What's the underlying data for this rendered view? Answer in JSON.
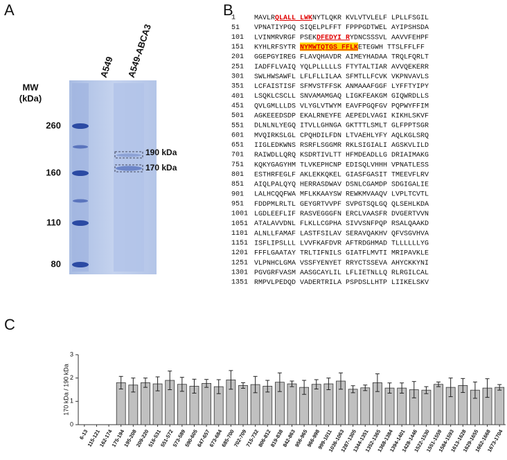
{
  "panel_a": {
    "label": "A",
    "mw_label": [
      "MW",
      "(kDa)"
    ],
    "markers": [
      "260",
      "160",
      "110",
      "80"
    ],
    "lanes": [
      "A549",
      "A549-ABCA3"
    ],
    "band_labels": [
      "190 kDa",
      "170 kDa"
    ]
  },
  "panel_b": {
    "label": "B",
    "lines": [
      {
        "number": "1",
        "segments": [
          {
            "text": "MAVLR"
          },
          {
            "text": "QLALL LWK",
            "style": "red"
          },
          {
            "text": "NYTLQKR KVLVTVLELF LPLLFSGIL"
          }
        ]
      },
      {
        "number": "51",
        "segments": [
          {
            "text": "VPNATIYPGQ SIQELPLFFT FPPPGDTWEL AYIPSHSDA"
          }
        ]
      },
      {
        "number": "101",
        "segments": [
          {
            "text": "LVINMRVRGF PSEK"
          },
          {
            "text": "DFEDYI R",
            "style": "red"
          },
          {
            "text": "YDNCSSSVL AAVVFEHPF"
          }
        ]
      },
      {
        "number": "151",
        "segments": [
          {
            "text": "KYHLRFSYTR "
          },
          {
            "text": "NYMWTQTGS FFLK",
            "style": "highlight"
          },
          {
            "text": "ETEGWH TTSLFFLFF"
          }
        ]
      },
      {
        "number": "201",
        "segments": [
          {
            "text": "GGEPGYIREG FLAVQHAVDR AIMEYHADAA TRQLFQRLT"
          }
        ]
      },
      {
        "number": "251",
        "segments": [
          {
            "text": "IADFFLVAIQ YQLPLLLLLS FTYTALTIAR AVVQEKERR"
          }
        ]
      },
      {
        "number": "301",
        "segments": [
          {
            "text": "SWLHWSAWFL LFLFLLILAA SFMTLLFCVK VKPNVAVLS"
          }
        ]
      },
      {
        "number": "351",
        "segments": [
          {
            "text": "LCFAISTISF SFMVSTFFSK ANMAAAFGGF LYFFTYIPY"
          }
        ]
      },
      {
        "number": "401",
        "segments": [
          {
            "text": "LSQKLCSCLL SNVAMAMGAQ LIGKFEAKGM GIQWRDLLS"
          }
        ]
      },
      {
        "number": "451",
        "segments": [
          {
            "text": "QVLGMLLLDS VLYGLVTWYM EAVFPGQFGV PQPWYFFIM"
          }
        ]
      },
      {
        "number": "501",
        "segments": [
          {
            "text": "AGKEEEDSDP EKALRNEYFE AEPEDLVAGI KIKHLSKVF"
          }
        ]
      },
      {
        "number": "551",
        "segments": [
          {
            "text": "DLNLNLYEGQ ITVLLGHNGA GKTTTLSMLT GLFPPTSGR"
          }
        ]
      },
      {
        "number": "601",
        "segments": [
          {
            "text": "MVQIRKSLGL CPQHDILFDN LTVAEHLYFY AQLKGLSRQ"
          }
        ]
      },
      {
        "number": "651",
        "segments": [
          {
            "text": "IIGLEDKWNS RSRFLSGGMR RKLSIGIALI AGSKVLILD"
          }
        ]
      },
      {
        "number": "701",
        "segments": [
          {
            "text": "RAIWDLLQRQ KSDRTIVLTT HFMDEADLLG DRIAIMAKG"
          }
        ]
      },
      {
        "number": "751",
        "segments": [
          {
            "text": "KQKYGAGYHM TLVKEPHCNP EDISQLVHHH VPNATLESS"
          }
        ]
      },
      {
        "number": "801",
        "segments": [
          {
            "text": "ESTHRFEGLF AKLEKKQKEL GIASFGASIT TMEEVFLRV"
          }
        ]
      },
      {
        "number": "851",
        "segments": [
          {
            "text": "AIQLPALQYQ HERRASDWAV DSNLCGAMDP SDGIGALIE"
          }
        ]
      },
      {
        "number": "901",
        "segments": [
          {
            "text": "LALHCQQFWA MFLKKAAYSW REWKMVAAQV LVPLTCVTL"
          }
        ]
      },
      {
        "number": "951",
        "segments": [
          {
            "text": "FDDPMLRLTL GEYGRTVVPF SVPGTSQLGQ QLSEHLKDA"
          }
        ]
      },
      {
        "number": "1001",
        "segments": [
          {
            "text": "LGDLEEFLIF RASVEGGGFN ERCLVAASFR DVGERTVVN"
          }
        ]
      },
      {
        "number": "1051",
        "segments": [
          {
            "text": "ATALAVVDNL FLKLLCGPHA SIVVSNFPQP RSALQAAKD"
          }
        ]
      },
      {
        "number": "1101",
        "segments": [
          {
            "text": "ALNLLFAMAF LASTFSILAV SERAVQAKHV QFVSGVHVA"
          }
        ]
      },
      {
        "number": "1151",
        "segments": [
          {
            "text": "ISFLIPSLLL LVVFKAFDVR AFTRDGHMAD TLLLLLLYG"
          }
        ]
      },
      {
        "number": "1201",
        "segments": [
          {
            "text": "FFFLGAATAY TRLTIFNILS GIATFLMVTI MRIPAVKLE"
          }
        ]
      },
      {
        "number": "1251",
        "segments": [
          {
            "text": "VLPNHCLGMA VSSFYENYET RRYCTSSEVA AHYCKKYNI"
          }
        ]
      },
      {
        "number": "1301",
        "segments": [
          {
            "text": "PGVGRFVASM AASGCAYLIL LFLIETNLLQ RLRGILCAL"
          }
        ]
      },
      {
        "number": "1351",
        "segments": [
          {
            "text": "RMPVLPEDQD VADERTRILA PSPDSLLHTP LIIKELSKV"
          }
        ]
      }
    ]
  },
  "chart_data": {
    "type": "bar",
    "panel_label": "C",
    "y_label": "170 kDa / 190 kDa",
    "color": "#c0c0c0",
    "categories": [
      "6-13",
      "115-121",
      "162-174",
      "175-194",
      "195-208",
      "209-220",
      "516-531",
      "551-572",
      "573-589",
      "590-605",
      "647-657",
      "673-684",
      "685-700",
      "702-709",
      "715-732",
      "806-812",
      "819-838",
      "842-863",
      "956-965",
      "966-998",
      "999-1011",
      "1036-1063",
      "1287-1305",
      "1344-1351",
      "1352-1365",
      "1368-1384",
      "1394-1401",
      "1428-1446",
      "1522-1530",
      "1551-1559",
      "1584-1593",
      "1613-1628",
      "1629-1655",
      "1662-1668",
      "1673-1704"
    ],
    "values": [
      null,
      null,
      null,
      1.8,
      1.7,
      1.8,
      1.75,
      1.9,
      1.73,
      1.65,
      1.77,
      1.63,
      1.92,
      1.68,
      1.72,
      1.65,
      1.82,
      1.75,
      1.6,
      1.73,
      1.75,
      1.87,
      1.52,
      1.58,
      1.8,
      1.57,
      1.57,
      1.5,
      1.48,
      1.73,
      1.6,
      1.68,
      1.48,
      1.57,
      1.6
    ],
    "errors": [
      null,
      null,
      null,
      0.27,
      0.3,
      0.2,
      0.3,
      0.4,
      0.3,
      0.3,
      0.17,
      0.3,
      0.4,
      0.12,
      0.35,
      0.25,
      0.4,
      0.12,
      0.3,
      0.2,
      0.25,
      0.35,
      0.15,
      0.12,
      0.38,
      0.22,
      0.22,
      0.35,
      0.15,
      0.1,
      0.4,
      0.3,
      0.35,
      0.4,
      0.12
    ],
    "ylim": [
      0,
      3
    ],
    "yticks": [
      0,
      1,
      2,
      3
    ]
  }
}
